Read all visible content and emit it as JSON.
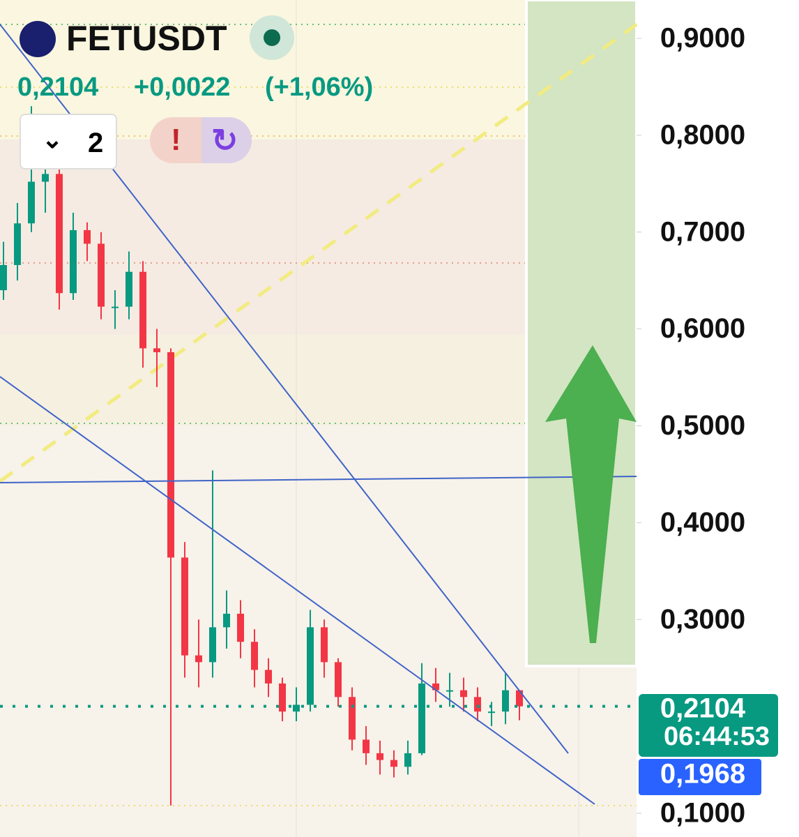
{
  "header": {
    "symbol": "FETUSDT",
    "last": "0,2104",
    "change": "+0,0022",
    "change_pct": "(+1,06%)",
    "interval": "2"
  },
  "chart_data": {
    "type": "candlestick",
    "open": [
      0.64,
      0.666,
      0.709,
      0.752,
      0.76,
      0.637,
      0.702,
      0.688,
      0.623,
      0.623,
      0.659,
      0.58,
      0.576,
      0.364,
      0.263,
      0.256,
      0.292,
      0.306,
      0.277,
      0.248,
      0.234,
      0.205,
      0.212,
      0.292,
      0.256,
      0.22,
      0.176,
      0.162,
      0.155,
      0.148,
      0.162,
      0.234,
      0.227,
      0.227,
      0.22,
      0.205,
      0.205,
      0.227
    ],
    "high": [
      0.69,
      0.73,
      0.83,
      0.78,
      0.77,
      0.72,
      0.71,
      0.7,
      0.64,
      0.68,
      0.67,
      0.6,
      0.58,
      0.38,
      0.3,
      0.454,
      0.33,
      0.32,
      0.29,
      0.26,
      0.24,
      0.23,
      0.31,
      0.3,
      0.26,
      0.23,
      0.19,
      0.175,
      0.165,
      0.175,
      0.255,
      0.25,
      0.245,
      0.24,
      0.23,
      0.215,
      0.245,
      0.225
    ],
    "low": [
      0.63,
      0.65,
      0.7,
      0.72,
      0.62,
      0.63,
      0.67,
      0.61,
      0.6,
      0.61,
      0.56,
      0.54,
      0.108,
      0.24,
      0.23,
      0.24,
      0.27,
      0.26,
      0.23,
      0.22,
      0.195,
      0.195,
      0.205,
      0.24,
      0.21,
      0.165,
      0.15,
      0.14,
      0.137,
      0.14,
      0.16,
      0.215,
      0.21,
      0.205,
      0.195,
      0.19,
      0.192,
      0.196
    ],
    "close": [
      0.666,
      0.709,
      0.752,
      0.76,
      0.637,
      0.702,
      0.688,
      0.623,
      0.623,
      0.659,
      0.58,
      0.576,
      0.364,
      0.263,
      0.256,
      0.292,
      0.306,
      0.277,
      0.248,
      0.234,
      0.205,
      0.212,
      0.292,
      0.256,
      0.22,
      0.176,
      0.162,
      0.155,
      0.148,
      0.162,
      0.234,
      0.227,
      0.227,
      0.22,
      0.205,
      0.205,
      0.227,
      0.2104
    ],
    "up_color": "#089981",
    "down_color": "#f23645",
    "ylim": [
      0.0755,
      0.9396
    ],
    "yticks": [
      {
        "value": 0.1,
        "label": "0,1000"
      },
      {
        "value": 0.3,
        "label": "0,3000"
      },
      {
        "value": 0.4,
        "label": "0,4000"
      },
      {
        "value": 0.5,
        "label": "0,5000"
      },
      {
        "value": 0.6,
        "label": "0,6000"
      },
      {
        "value": 0.7,
        "label": "0,7000"
      },
      {
        "value": 0.8,
        "label": "0,8000"
      },
      {
        "value": 0.9,
        "label": "0,9000"
      }
    ],
    "current_price": {
      "value": 0.2104,
      "label": "0,2104"
    },
    "countdown": "06:44:53",
    "low_price": {
      "value": 0.1968,
      "label": "0,1968"
    }
  }
}
